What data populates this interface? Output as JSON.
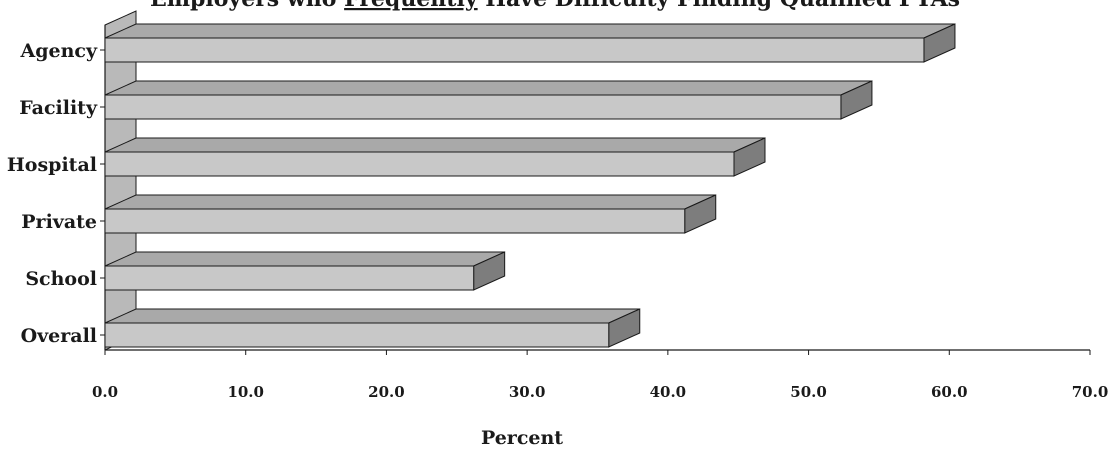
{
  "chart_data": {
    "type": "bar",
    "orientation": "horizontal",
    "style": "3d",
    "title": {
      "before": "Employers who ",
      "underlined": "Frequently",
      "after": " Have Difficulty Finding Qualified PTAs"
    },
    "categories": [
      "Agency",
      "Facility",
      "Hospital",
      "Private",
      "School",
      "Overall"
    ],
    "values": [
      58.2,
      52.3,
      44.7,
      41.2,
      26.2,
      35.8
    ],
    "xlabel": "Percent",
    "ylabel": "",
    "xlim": [
      0,
      70
    ],
    "xticks": [
      "0.0",
      "10.0",
      "20.0",
      "30.0",
      "40.0",
      "50.0",
      "60.0",
      "70.0"
    ],
    "grid": false,
    "legend": "none",
    "colors": {
      "bar_front": "#c8c8c8",
      "bar_top": "#a9a9a9",
      "bar_side": "#7d7d7d",
      "back_wall": "#b9b9b9",
      "outline": "#1a1a1a"
    }
  }
}
